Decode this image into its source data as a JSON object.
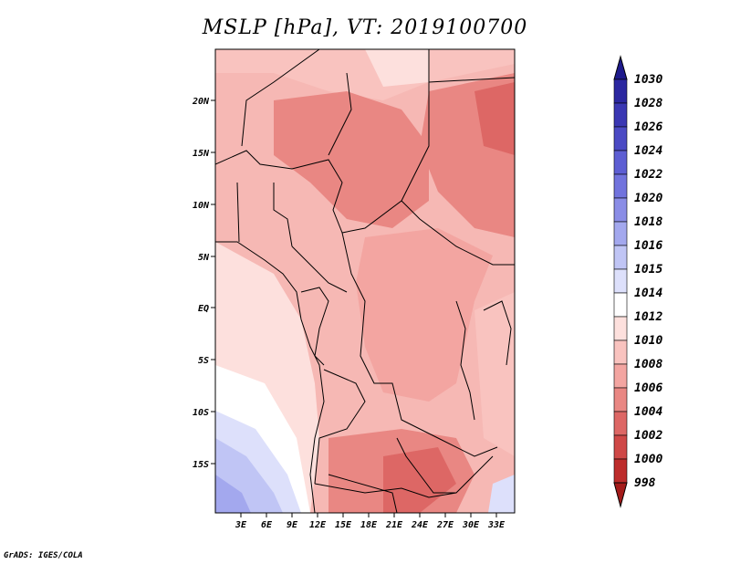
{
  "title": "MSLP [hPa], VT: 2019100700",
  "credit": "GrADS: IGES/COLA",
  "lat_labels": [
    "20N",
    "15N",
    "10N",
    "5N",
    "EQ",
    "5S",
    "10S",
    "15S"
  ],
  "lon_labels": [
    "3E",
    "6E",
    "9E",
    "12E",
    "15E",
    "18E",
    "21E",
    "24E",
    "27E",
    "30E",
    "33E"
  ],
  "colorbar": {
    "labels": [
      "1030",
      "1028",
      "1026",
      "1024",
      "1022",
      "1020",
      "1018",
      "1016",
      "1015",
      "1014",
      "1012",
      "1010",
      "1008",
      "1006",
      "1004",
      "1002",
      "1000",
      "998"
    ],
    "colors": [
      "#1e1a8c",
      "#2b27a0",
      "#3a37b3",
      "#4b4ac4",
      "#5d5ed3",
      "#7173dd",
      "#8a8de6",
      "#a3a8ee",
      "#c0c5f5",
      "#dde0fb",
      "#ffffff",
      "#fde0dd",
      "#f9c3bf",
      "#f3a5a1",
      "#e98783",
      "#dd6765",
      "#cf4847",
      "#bd2c2b",
      "#a41b1a"
    ]
  }
}
